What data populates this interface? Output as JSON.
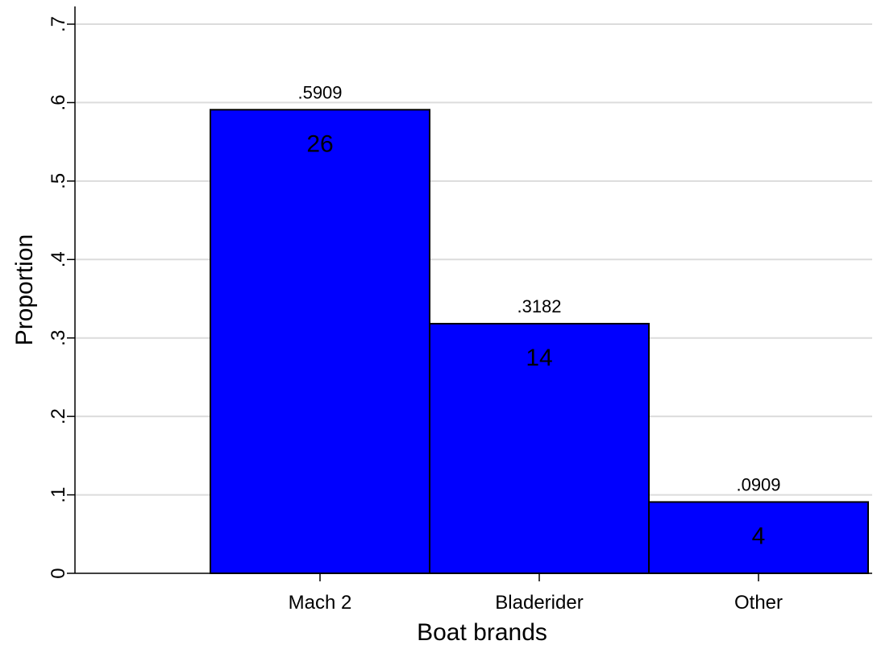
{
  "chart_data": {
    "type": "bar",
    "categories": [
      "Mach 2",
      "Bladerider",
      "Other"
    ],
    "values": [
      0.5909,
      0.3182,
      0.0909
    ],
    "value_labels": [
      ".5909",
      ".3182",
      ".0909"
    ],
    "counts": [
      "26",
      "14",
      "4"
    ],
    "xlabel": "Boat brands",
    "ylabel": "Proportion",
    "ylim": [
      0,
      0.7
    ],
    "yticks": [
      0,
      0.1,
      0.2,
      0.3,
      0.4,
      0.5,
      0.6,
      0.7
    ],
    "ytick_labels": [
      "0",
      ".1",
      ".2",
      ".3",
      ".4",
      ".5",
      ".6",
      ".7"
    ],
    "grid": true,
    "colors": {
      "bar_fill": "#0000ff",
      "bar_stroke": "#000000",
      "grid": "#dcdcdc"
    }
  }
}
